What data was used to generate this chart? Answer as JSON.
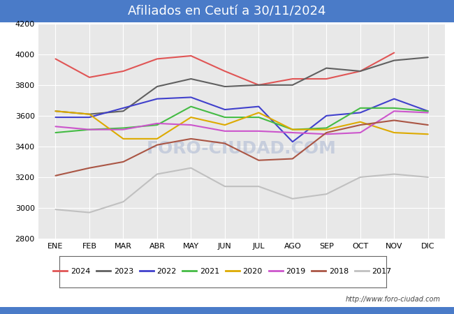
{
  "title": "Afiliados en Ceutí a 30/11/2024",
  "title_bg_color": "#4a7bc8",
  "title_text_color": "white",
  "months": [
    "ENE",
    "FEB",
    "MAR",
    "ABR",
    "MAY",
    "JUN",
    "JUL",
    "AGO",
    "SEP",
    "OCT",
    "NOV",
    "DIC"
  ],
  "ylim": [
    2800,
    4200
  ],
  "yticks": [
    2800,
    3000,
    3200,
    3400,
    3600,
    3800,
    4000,
    4200
  ],
  "plot_bg_color": "#e8e8e8",
  "watermark_text": "FORO-CIUDAD.COM",
  "url_text": "http://www.foro-ciudad.com",
  "series": {
    "2024": {
      "color": "#e05555",
      "data": [
        3970,
        3850,
        3890,
        3970,
        3990,
        3890,
        3800,
        3840,
        3840,
        3890,
        4010,
        null
      ]
    },
    "2023": {
      "color": "#606060",
      "data": [
        3630,
        3610,
        3630,
        3790,
        3840,
        3790,
        3800,
        3800,
        3910,
        3890,
        3960,
        3980
      ]
    },
    "2022": {
      "color": "#4040cc",
      "data": [
        3590,
        3590,
        3650,
        3710,
        3720,
        3640,
        3660,
        3430,
        3600,
        3620,
        3710,
        3630
      ]
    },
    "2021": {
      "color": "#44bb44",
      "data": [
        3490,
        3510,
        3520,
        3540,
        3660,
        3590,
        3590,
        3510,
        3520,
        3650,
        3650,
        3630
      ]
    },
    "2020": {
      "color": "#ddaa00",
      "data": [
        3630,
        3610,
        3450,
        3450,
        3590,
        3540,
        3620,
        3510,
        3510,
        3560,
        3490,
        3480
      ]
    },
    "2019": {
      "color": "#cc55cc",
      "data": [
        3530,
        3510,
        3510,
        3550,
        3540,
        3500,
        3500,
        3490,
        3480,
        3490,
        3630,
        3620
      ]
    },
    "2018": {
      "color": "#aa5544",
      "data": [
        3210,
        3260,
        3300,
        3410,
        3450,
        3420,
        3310,
        3320,
        3490,
        3540,
        3570,
        3540
      ]
    },
    "2017": {
      "color": "#c0c0c0",
      "data": [
        2990,
        2970,
        3040,
        3220,
        3260,
        3140,
        3140,
        3060,
        3090,
        3200,
        3220,
        3200
      ]
    }
  },
  "years_order": [
    "2024",
    "2023",
    "2022",
    "2021",
    "2020",
    "2019",
    "2018",
    "2017"
  ]
}
